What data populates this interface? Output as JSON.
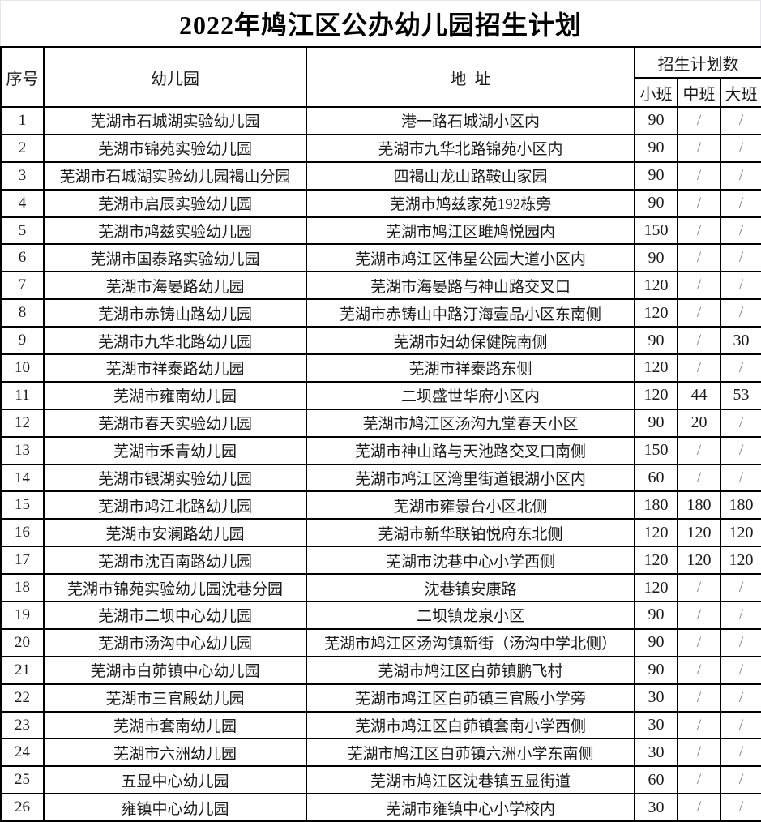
{
  "title": "2022年鸠江区公办幼儿园招生计划",
  "table": {
    "headers": {
      "index": "序号",
      "kindergarten": "幼儿园",
      "address": "地  址",
      "plan_group": "招生计划数",
      "small_class": "小班",
      "middle_class": "中班",
      "big_class": "大班"
    },
    "rows": [
      {
        "no": "1",
        "name": "芜湖市石城湖实验幼儿园",
        "address": "港一路石城湖小区内",
        "small": "90",
        "middle": "/",
        "big": "/"
      },
      {
        "no": "2",
        "name": "芜湖市锦苑实验幼儿园",
        "address": "芜湖市九华北路锦苑小区内",
        "small": "90",
        "middle": "/",
        "big": "/"
      },
      {
        "no": "3",
        "name": "芜湖市石城湖实验幼儿园褐山分园",
        "address": "四褐山龙山路鞍山家园",
        "small": "90",
        "middle": "/",
        "big": "/"
      },
      {
        "no": "4",
        "name": "芜湖市启辰实验幼儿园",
        "address": "芜湖市鸠兹家苑192栋旁",
        "small": "90",
        "middle": "/",
        "big": "/"
      },
      {
        "no": "5",
        "name": "芜湖市鸠兹实验幼儿园",
        "address": "芜湖市鸠江区雎鸠悦园内",
        "small": "150",
        "middle": "/",
        "big": "/"
      },
      {
        "no": "6",
        "name": "芜湖市国泰路实验幼儿园",
        "address": "芜湖市鸠江区伟星公园大道小区内",
        "small": "90",
        "middle": "/",
        "big": "/"
      },
      {
        "no": "7",
        "name": "芜湖市海晏路幼儿园",
        "address": "芜湖市海晏路与神山路交叉口",
        "small": "120",
        "middle": "/",
        "big": "/"
      },
      {
        "no": "8",
        "name": "芜湖市赤铸山路幼儿园",
        "address": "芜湖市赤铸山中路汀海壹品小区东南侧",
        "small": "120",
        "middle": "/",
        "big": "/"
      },
      {
        "no": "9",
        "name": "芜湖市九华北路幼儿园",
        "address": "芜湖市妇幼保健院南侧",
        "small": "90",
        "middle": "/",
        "big": "30"
      },
      {
        "no": "10",
        "name": "芜湖市祥泰路幼儿园",
        "address": "芜湖市祥泰路东侧",
        "small": "120",
        "middle": "/",
        "big": "/"
      },
      {
        "no": "11",
        "name": "芜湖市雍南幼儿园",
        "address": "二坝盛世华府小区内",
        "small": "120",
        "middle": "44",
        "big": "53"
      },
      {
        "no": "12",
        "name": "芜湖市春天实验幼儿园",
        "address": "芜湖市鸠江区汤沟九堂春天小区",
        "small": "90",
        "middle": "20",
        "big": "/"
      },
      {
        "no": "13",
        "name": "芜湖市禾青幼儿园",
        "address": "芜湖市神山路与天池路交叉口南侧",
        "small": "150",
        "middle": "/",
        "big": "/"
      },
      {
        "no": "14",
        "name": "芜湖市银湖实验幼儿园",
        "address": "芜湖市鸠江区湾里街道银湖小区内",
        "small": "60",
        "middle": "/",
        "big": "/"
      },
      {
        "no": "15",
        "name": "芜湖市鸠江北路幼儿园",
        "address": "芜湖市雍景台小区北侧",
        "small": "180",
        "middle": "180",
        "big": "180"
      },
      {
        "no": "16",
        "name": "芜湖市安澜路幼儿园",
        "address": "芜湖市新华联铂悦府东北侧",
        "small": "120",
        "middle": "120",
        "big": "120"
      },
      {
        "no": "17",
        "name": "芜湖市沈百南路幼儿园",
        "address": "芜湖市沈巷中心小学西侧",
        "small": "120",
        "middle": "120",
        "big": "120"
      },
      {
        "no": "18",
        "name": "芜湖市锦苑实验幼儿园沈巷分园",
        "address": "沈巷镇安康路",
        "small": "120",
        "middle": "/",
        "big": "/"
      },
      {
        "no": "19",
        "name": "芜湖市二坝中心幼儿园",
        "address": "二坝镇龙泉小区",
        "small": "90",
        "middle": "/",
        "big": "/"
      },
      {
        "no": "20",
        "name": "芜湖市汤沟中心幼儿园",
        "address": "芜湖市鸠江区汤沟镇新街（汤沟中学北侧）",
        "small": "90",
        "middle": "/",
        "big": "/"
      },
      {
        "no": "21",
        "name": "芜湖市白茆镇中心幼儿园",
        "address": "芜湖市鸠江区白茆镇鹏飞村",
        "small": "90",
        "middle": "/",
        "big": "/"
      },
      {
        "no": "22",
        "name": "芜湖市三官殿幼儿园",
        "address": "芜湖市鸠江区白茆镇三官殿小学旁",
        "small": "30",
        "middle": "/",
        "big": "/"
      },
      {
        "no": "23",
        "name": "芜湖市套南幼儿园",
        "address": "芜湖市鸠江区白茆镇套南小学西侧",
        "small": "30",
        "middle": "/",
        "big": "/"
      },
      {
        "no": "24",
        "name": "芜湖市六洲幼儿园",
        "address": "芜湖市鸠江区白茆镇六洲小学东南侧",
        "small": "30",
        "middle": "/",
        "big": "/"
      },
      {
        "no": "25",
        "name": "五显中心幼儿园",
        "address": "芜湖市鸠江区沈巷镇五显街道",
        "small": "60",
        "middle": "/",
        "big": "/"
      },
      {
        "no": "26",
        "name": "雍镇中心幼儿园",
        "address": "芜湖市雍镇中心小学校内",
        "small": "30",
        "middle": "/",
        "big": "/"
      }
    ]
  },
  "colors": {
    "border": "#000000",
    "text": "#1b1b1b",
    "slash": "#7f7f7f",
    "title_frame": "#e4e6ef"
  }
}
